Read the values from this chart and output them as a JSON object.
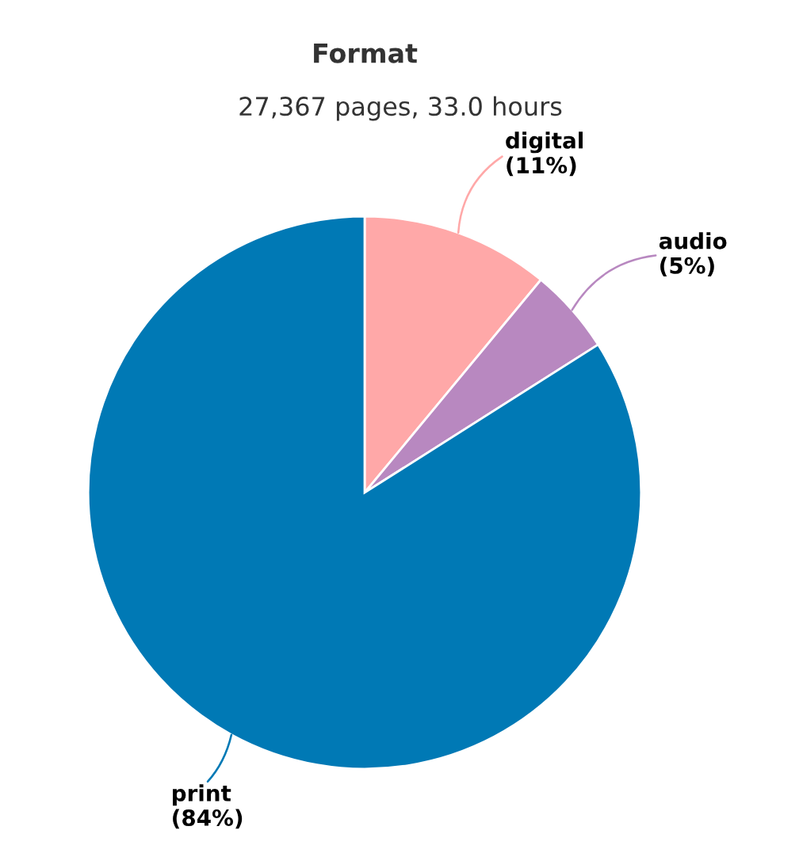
{
  "chart_data": {
    "type": "pie",
    "title": "Format",
    "subtitle": "27,367 pages, 33.0 hours",
    "categories": [
      "digital",
      "audio",
      "print"
    ],
    "values": [
      11,
      5,
      84
    ],
    "value_labels": [
      "(11%)",
      "(5%)",
      "(84%)"
    ],
    "colors": [
      "#ffa8a8",
      "#b888c0",
      "#0079b5"
    ]
  }
}
